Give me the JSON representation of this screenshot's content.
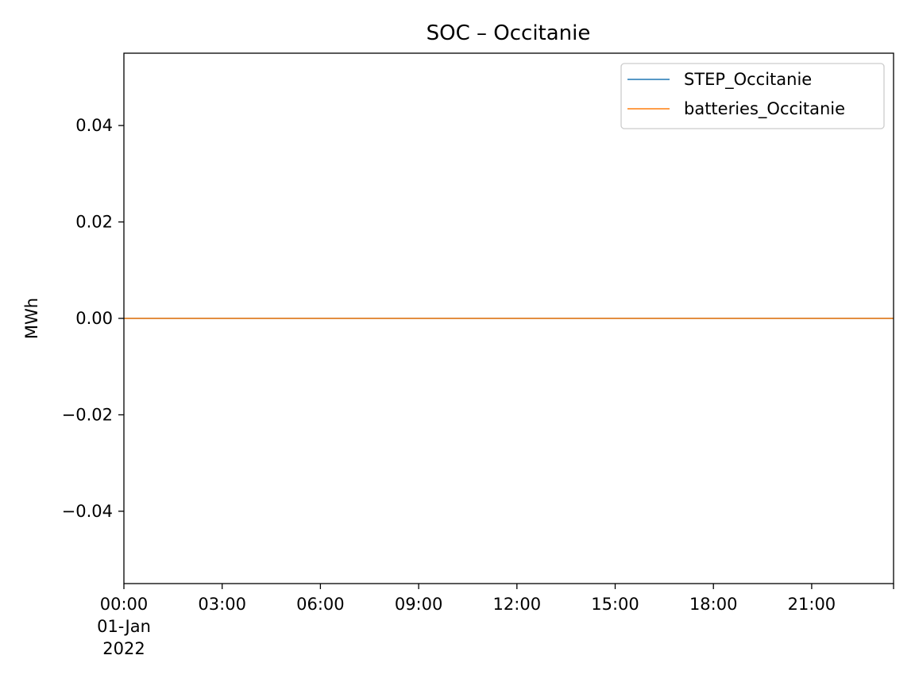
{
  "chart_data": {
    "type": "line",
    "title": "SOC – Occitanie",
    "xlabel": "",
    "ylabel": "MWh",
    "x_ticks": [
      {
        "hour": 0,
        "lines": [
          "00:00",
          "01-Jan",
          "2022"
        ]
      },
      {
        "hour": 3,
        "lines": [
          "03:00"
        ]
      },
      {
        "hour": 6,
        "lines": [
          "06:00"
        ]
      },
      {
        "hour": 9,
        "lines": [
          "09:00"
        ]
      },
      {
        "hour": 12,
        "lines": [
          "12:00"
        ]
      },
      {
        "hour": 15,
        "lines": [
          "15:00"
        ]
      },
      {
        "hour": 18,
        "lines": [
          "18:00"
        ]
      },
      {
        "hour": 21,
        "lines": [
          "21:00"
        ]
      }
    ],
    "xlim": [
      0,
      23.5
    ],
    "y_ticks": [
      {
        "value": 0.04,
        "label": "0.04"
      },
      {
        "value": 0.02,
        "label": "0.02"
      },
      {
        "value": 0.0,
        "label": "0.00"
      },
      {
        "value": -0.02,
        "label": "−0.02"
      },
      {
        "value": -0.04,
        "label": "−0.04"
      }
    ],
    "ylim": [
      -0.055,
      0.055
    ],
    "grid": false,
    "legend_position": "top-right",
    "series": [
      {
        "name": "STEP_Occitanie",
        "color": "#1f77b4",
        "x": [
          0,
          23.5
        ],
        "y": [
          0,
          0
        ]
      },
      {
        "name": "batteries_Occitanie",
        "color": "#ff7f0e",
        "x": [
          0,
          23.5
        ],
        "y": [
          0,
          0
        ]
      }
    ]
  }
}
